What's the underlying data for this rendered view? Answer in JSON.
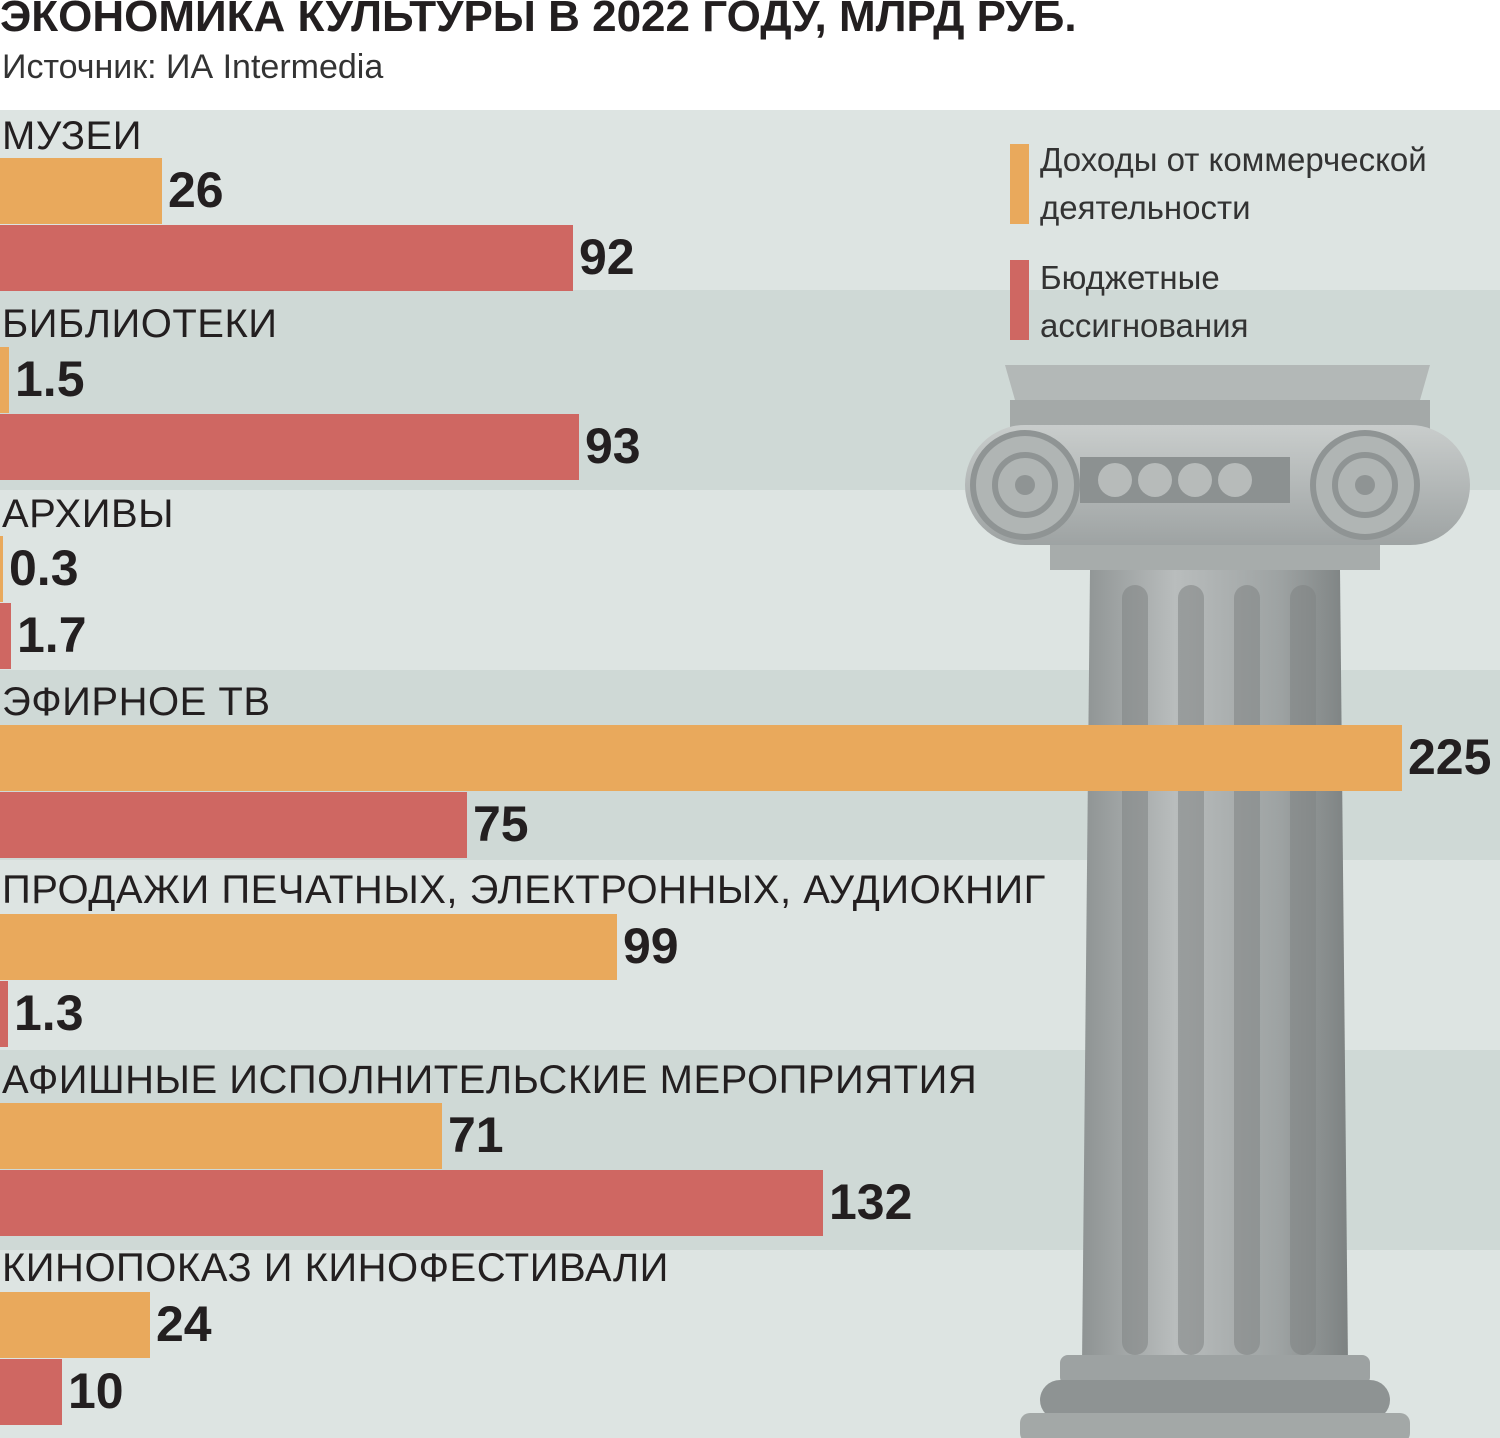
{
  "chart_data": {
    "type": "bar",
    "orientation": "horizontal",
    "title": "ЭКОНОМИКА КУЛЬТУРЫ В 2022 ГОДУ, МЛРД РУБ.",
    "subtitle": "Источник: ИА Intermedia",
    "categories": [
      "МУЗЕИ",
      "БИБЛИОТЕКИ",
      "АРХИВЫ",
      "ЭФИРНОЕ ТВ",
      "ПРОДАЖИ ПЕЧАТНЫХ, ЭЛЕКТРОННЫХ, АУДИОКНИГ",
      "АФИШНЫЕ ИСПОЛНИТЕЛЬСКИЕ МЕРОПРИЯТИЯ",
      "КИНОПОКАЗ И КИНОФЕСТИВАЛИ"
    ],
    "series": [
      {
        "name": "Доходы от коммерческой деятельности",
        "color": "#e9a95c",
        "values": [
          26,
          1.5,
          0.3,
          225,
          99,
          71,
          24
        ],
        "labels": [
          "26",
          "1.5",
          "0.3",
          "225",
          "99",
          "71",
          "24"
        ]
      },
      {
        "name": "Бюджетные ассигнования",
        "color": "#cf6762",
        "values": [
          92,
          93,
          1.7,
          75,
          1.3,
          132,
          10
        ],
        "labels": [
          "92",
          "93",
          "1.7",
          "75",
          "1.3",
          "132",
          "10"
        ]
      }
    ],
    "xlim": [
      0,
      225
    ],
    "grid": false,
    "legend": "top-right"
  },
  "colors": {
    "background": "#dde4e2",
    "band": "#cfd9d6",
    "commercial": "#e9a95c",
    "budget": "#cf6762",
    "text": "#231f20"
  },
  "illustration": "ionic-column-icon"
}
